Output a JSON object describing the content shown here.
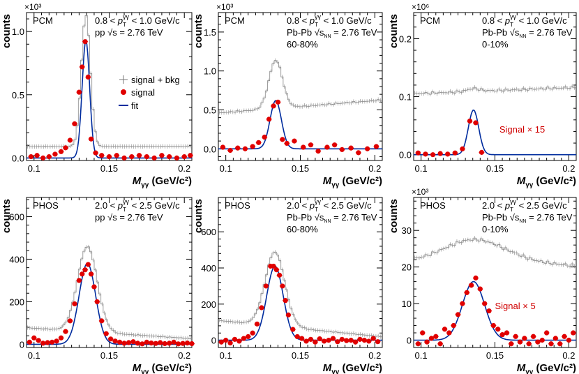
{
  "figure": {
    "x_label_main": "M",
    "x_label_sub": "γγ",
    "x_label_units": "(GeV/c²)",
    "y_label": "counts",
    "x_ticks": [
      "0.1",
      "0.15",
      "0.2"
    ]
  },
  "legend": {
    "bkg": "signal + bkg",
    "sig": "signal",
    "fit": "fit"
  },
  "chart_data": [
    {
      "type": "line",
      "det": "PCM",
      "pt": "0.8 < p_T^γγ < 1.0 GeV/c",
      "sys": "pp √s = 2.76 TeV",
      "cent": "",
      "scale_label": "×10³",
      "extra": "",
      "xlim": [
        0.095,
        0.205
      ],
      "ylim": [
        -0.02,
        1.15
      ],
      "y_ticks": [
        0,
        0.5,
        1.0
      ],
      "y_tick_labels": [
        "0.0",
        "0.5",
        "1.0"
      ],
      "peak_mean": 0.1345,
      "peak_sigma": 0.0025,
      "peak_amp": 0.93,
      "bkg_level": 0.09,
      "bkg_slope": 0.2,
      "bkg_peak": 1.04,
      "signal_points": {
        "x": [
          0.098,
          0.102,
          0.106,
          0.11,
          0.114,
          0.118,
          0.121,
          0.124,
          0.127,
          0.13,
          0.132,
          0.134,
          0.136,
          0.138,
          0.141,
          0.145,
          0.15,
          0.155,
          0.16,
          0.165,
          0.17,
          0.175,
          0.18,
          0.185,
          0.19,
          0.195,
          0.2,
          0.204
        ],
        "y": [
          0.01,
          0.02,
          0.0,
          0.01,
          0.03,
          0.05,
          0.08,
          0.14,
          0.27,
          0.52,
          0.72,
          0.92,
          0.64,
          0.15,
          0.04,
          0.02,
          0.01,
          0.02,
          0.0,
          0.01,
          0.02,
          0.01,
          0.0,
          0.02,
          0.01,
          0.0,
          0.01,
          0.02
        ]
      }
    },
    {
      "type": "line",
      "det": "PCM",
      "pt": "0.8 < p_T^γγ < 1.0 GeV/c",
      "sys": "Pb-Pb √s_NN = 2.76 TeV",
      "cent": "60-80%",
      "scale_label": "×10³",
      "extra": "",
      "xlim": [
        0.095,
        0.205
      ],
      "ylim": [
        -0.15,
        1.75
      ],
      "y_ticks": [
        0,
        0.5,
        1.0,
        1.5
      ],
      "y_tick_labels": [
        "0.0",
        "0.5",
        "1.0",
        "1.5"
      ],
      "peak_mean": 0.1335,
      "peak_sigma": 0.0038,
      "peak_amp": 0.62,
      "bkg_level": 0.46,
      "bkg_slope": 3.3,
      "bkg_peak": 0.62,
      "signal_points": {
        "x": [
          0.098,
          0.103,
          0.108,
          0.113,
          0.118,
          0.122,
          0.126,
          0.129,
          0.132,
          0.135,
          0.138,
          0.141,
          0.146,
          0.152,
          0.157,
          0.162,
          0.168,
          0.173,
          0.178,
          0.184,
          0.189,
          0.195,
          0.201
        ],
        "y": [
          0.02,
          -0.02,
          0.01,
          0.0,
          0.03,
          0.08,
          0.15,
          0.38,
          0.55,
          0.6,
          0.12,
          0.07,
          0.1,
          0.02,
          0.05,
          -0.03,
          0.02,
          0.05,
          -0.01,
          0.01,
          -0.05,
          0.0,
          0.03
        ]
      }
    },
    {
      "type": "line",
      "det": "PCM",
      "pt": "0.8 < p_T^γγ < 1.0 GeV/c",
      "sys": "Pb-Pb √s_NN = 2.76 TeV",
      "cent": "0-10%",
      "scale_label": "×10⁶",
      "extra": "Signal × 15",
      "xlim": [
        0.095,
        0.205
      ],
      "ylim": [
        -0.01,
        0.245
      ],
      "y_ticks": [
        0,
        0.1,
        0.2
      ],
      "y_tick_labels": [
        "0.0",
        "0.1",
        "0.2"
      ],
      "peak_mean": 0.1355,
      "peak_sigma": 0.0035,
      "peak_amp": 0.077,
      "bkg_level": 0.105,
      "bkg_slope": 0.96,
      "bkg_peak": 0.005,
      "signal_points": {
        "x": [
          0.098,
          0.103,
          0.108,
          0.113,
          0.118,
          0.123,
          0.128,
          0.133,
          0.137,
          0.141
        ],
        "y": [
          0.003,
          0.001,
          0.0,
          0.002,
          0.001,
          0.003,
          0.01,
          0.058,
          0.055,
          0.004
        ]
      }
    },
    {
      "type": "line",
      "det": "PHOS",
      "pt": "2.0 < p_T^γγ < 2.5 GeV/c",
      "sys": "pp √s = 2.76 TeV",
      "cent": "",
      "scale_label": "",
      "extra": "",
      "xlim": [
        0.095,
        0.205
      ],
      "ylim": [
        -15,
        690
      ],
      "y_ticks": [
        0,
        200,
        400,
        600
      ],
      "y_tick_labels": [
        "0",
        "200",
        "400",
        "600"
      ],
      "peak_mean": 0.1355,
      "peak_sigma": 0.0055,
      "peak_amp": 380,
      "bkg_level": 78,
      "bkg_slope": -120,
      "bkg_peak": 400,
      "signal_points": {
        "x": [
          0.097,
          0.1,
          0.103,
          0.106,
          0.109,
          0.112,
          0.115,
          0.118,
          0.121,
          0.124,
          0.127,
          0.13,
          0.132,
          0.134,
          0.136,
          0.138,
          0.14,
          0.142,
          0.145,
          0.148,
          0.151,
          0.154,
          0.157,
          0.16,
          0.163,
          0.166,
          0.169,
          0.172,
          0.175,
          0.178,
          0.181,
          0.184,
          0.187,
          0.19,
          0.193,
          0.196,
          0.199,
          0.202,
          0.205
        ],
        "y": [
          10,
          30,
          18,
          5,
          8,
          10,
          15,
          30,
          60,
          110,
          190,
          300,
          330,
          350,
          375,
          330,
          270,
          200,
          110,
          50,
          25,
          15,
          10,
          5,
          8,
          12,
          5,
          2,
          10,
          6,
          4,
          8,
          3,
          5,
          10,
          2,
          4,
          6,
          3
        ]
      }
    },
    {
      "type": "line",
      "det": "PHOS",
      "pt": "2.0 < p_T^γγ < 2.5 GeV/c",
      "sys": "Pb-Pb √s_NN = 2.76 TeV",
      "cent": "60-80%",
      "scale_label": "",
      "extra": "",
      "xlim": [
        0.095,
        0.205
      ],
      "ylim": [
        -40,
        790
      ],
      "y_ticks": [
        0,
        200,
        400,
        600
      ],
      "y_tick_labels": [
        "0",
        "200",
        "400",
        "600"
      ],
      "peak_mean": 0.133,
      "peak_sigma": 0.0055,
      "peak_amp": 410,
      "bkg_level": 110,
      "bkg_slope": -150,
      "bkg_peak": 410,
      "signal_points": {
        "x": [
          0.097,
          0.1,
          0.103,
          0.106,
          0.109,
          0.112,
          0.115,
          0.118,
          0.121,
          0.124,
          0.127,
          0.13,
          0.132,
          0.134,
          0.136,
          0.138,
          0.14,
          0.142,
          0.145,
          0.148,
          0.151,
          0.154,
          0.157,
          0.16,
          0.163,
          0.166,
          0.169,
          0.172,
          0.175,
          0.178,
          0.181,
          0.184,
          0.187,
          0.19,
          0.193,
          0.196,
          0.199,
          0.202
        ],
        "y": [
          -10,
          0,
          -15,
          5,
          -5,
          10,
          20,
          40,
          90,
          180,
          300,
          410,
          410,
          390,
          360,
          300,
          220,
          140,
          60,
          20,
          10,
          -5,
          5,
          -10,
          8,
          -5,
          0,
          10,
          -8,
          5,
          -2,
          0,
          -10,
          5,
          0,
          -5,
          10,
          -8
        ]
      }
    },
    {
      "type": "line",
      "det": "PHOS",
      "pt": "2.0 < p_T^γγ < 2.5 GeV/c",
      "sys": "Pb-Pb √s_NN = 2.76 TeV",
      "cent": "0-10%",
      "scale_label": "×10³",
      "extra": "Signal × 5",
      "xlim": [
        0.095,
        0.205
      ],
      "ylim": [
        -2,
        39
      ],
      "y_ticks": [
        0,
        10,
        20,
        30
      ],
      "y_tick_labels": [
        "0",
        "10",
        "20",
        "30"
      ],
      "peak_mean": 0.1355,
      "peak_sigma": 0.0075,
      "peak_amp": 16,
      "bkg_level": 20.5,
      "bkg_slope": 0,
      "bkg_peak": 5.3,
      "signal_points": {
        "x": [
          0.098,
          0.101,
          0.104,
          0.107,
          0.11,
          0.113,
          0.116,
          0.119,
          0.122,
          0.125,
          0.128,
          0.131,
          0.134,
          0.137,
          0.14,
          0.143,
          0.146,
          0.149,
          0.152,
          0.155,
          0.158,
          0.161,
          0.164,
          0.167,
          0.17,
          0.173,
          0.176,
          0.179,
          0.182,
          0.185,
          0.188,
          0.191,
          0.194,
          0.197,
          0.2,
          0.203
        ],
        "y": [
          -1,
          2,
          -0.5,
          0.5,
          1,
          -1,
          3,
          2,
          4,
          7,
          10,
          13,
          15,
          17,
          14,
          10,
          8,
          4,
          3,
          1.5,
          2,
          -1,
          1,
          -0.5,
          0.5,
          -1,
          1,
          -0.5,
          0,
          2,
          -1,
          0.5,
          -1,
          1,
          0,
          2
        ]
      }
    }
  ]
}
